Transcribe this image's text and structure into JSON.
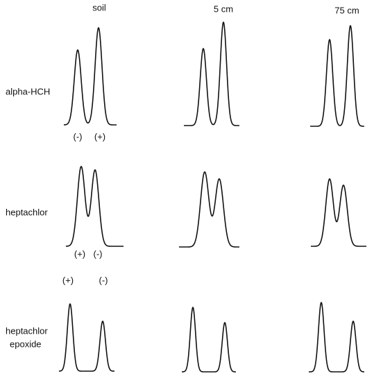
{
  "columns": [
    "soil",
    "5 cm",
    "75 cm"
  ],
  "rows": [
    {
      "label": [
        "alpha-HCH"
      ],
      "annotations": [
        "(-)",
        "(+)"
      ]
    },
    {
      "label": [
        "heptachlor"
      ],
      "annotations": [
        "(+)",
        "(-)"
      ]
    },
    {
      "label": [
        "heptachlor",
        "epoxide"
      ],
      "annotations": [
        "(+)",
        "(-)"
      ]
    }
  ]
}
